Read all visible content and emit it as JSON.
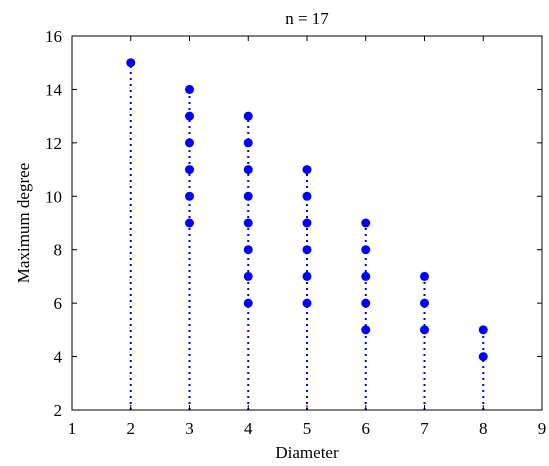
{
  "chart_data": {
    "type": "scatter",
    "title": "n = 17",
    "xlabel": "Diameter",
    "ylabel": "Maximum degree",
    "xlim": [
      1,
      9
    ],
    "ylim": [
      2,
      16
    ],
    "xticks": [
      1,
      2,
      3,
      4,
      5,
      6,
      7,
      8,
      9
    ],
    "yticks": [
      2,
      4,
      6,
      8,
      10,
      12,
      14,
      16
    ],
    "grid": false,
    "marker_color": "#0000ff",
    "stem_style": "dotted",
    "points": [
      {
        "x": 2,
        "y": 15
      },
      {
        "x": 3,
        "y": 9
      },
      {
        "x": 3,
        "y": 10
      },
      {
        "x": 3,
        "y": 11
      },
      {
        "x": 3,
        "y": 12
      },
      {
        "x": 3,
        "y": 13
      },
      {
        "x": 3,
        "y": 14
      },
      {
        "x": 4,
        "y": 6
      },
      {
        "x": 4,
        "y": 7
      },
      {
        "x": 4,
        "y": 8
      },
      {
        "x": 4,
        "y": 9
      },
      {
        "x": 4,
        "y": 10
      },
      {
        "x": 4,
        "y": 11
      },
      {
        "x": 4,
        "y": 12
      },
      {
        "x": 4,
        "y": 13
      },
      {
        "x": 5,
        "y": 6
      },
      {
        "x": 5,
        "y": 7
      },
      {
        "x": 5,
        "y": 8
      },
      {
        "x": 5,
        "y": 9
      },
      {
        "x": 5,
        "y": 10
      },
      {
        "x": 5,
        "y": 11
      },
      {
        "x": 6,
        "y": 5
      },
      {
        "x": 6,
        "y": 6
      },
      {
        "x": 6,
        "y": 7
      },
      {
        "x": 6,
        "y": 8
      },
      {
        "x": 6,
        "y": 9
      },
      {
        "x": 7,
        "y": 5
      },
      {
        "x": 7,
        "y": 6
      },
      {
        "x": 7,
        "y": 7
      },
      {
        "x": 8,
        "y": 4
      },
      {
        "x": 8,
        "y": 5
      }
    ]
  }
}
